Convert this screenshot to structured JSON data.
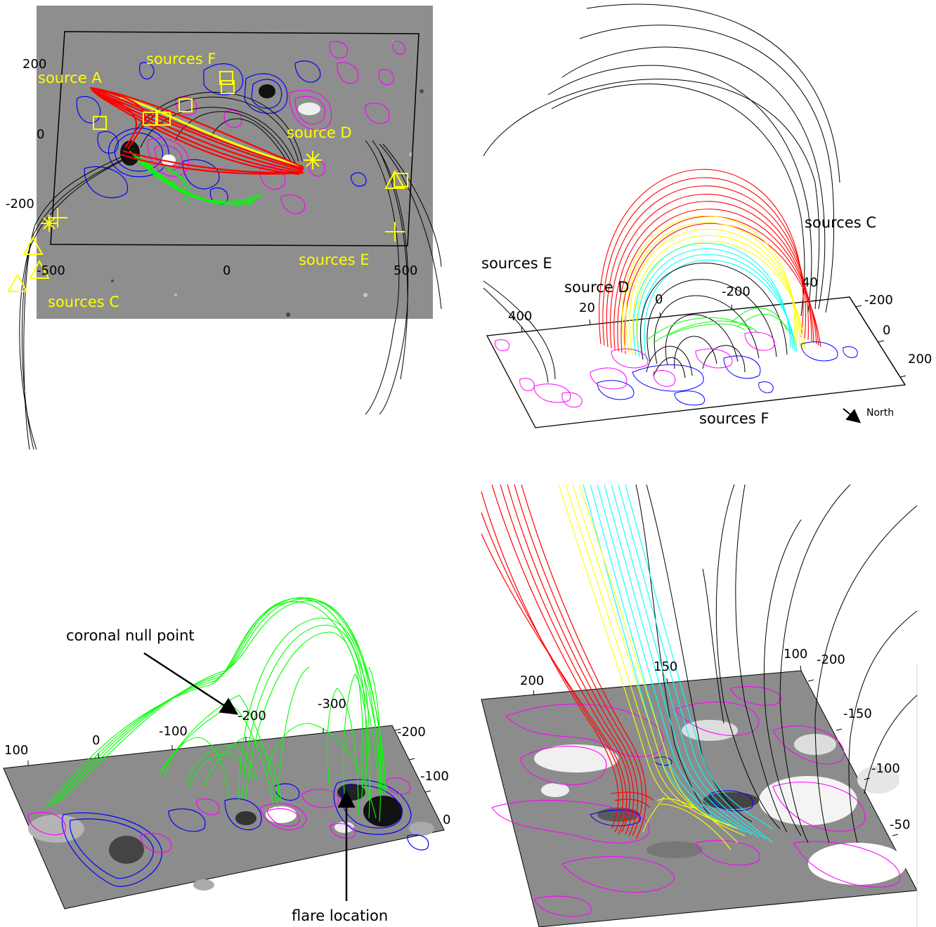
{
  "panel_a": {
    "labels": {
      "source_a": "source A",
      "sources_f": "sources F",
      "source_d": "source D",
      "sources_e": "sources E",
      "sources_c": "sources C"
    },
    "ticks": {
      "y_200": "200",
      "y_0": "0",
      "y_m200": "-200",
      "x_m500": "-500",
      "x_0": "0",
      "x_500": "500"
    }
  },
  "panel_b": {
    "labels": {
      "sources_e": "sources E",
      "source_d": "source D",
      "sources_c": "sources C",
      "sources_f": "sources F",
      "north": "North"
    },
    "ticks": {
      "t400": "400",
      "t20": "20",
      "t0": "0",
      "tm200": "-200",
      "t40": "40",
      "r_m200": "-200",
      "r_0": "0",
      "r_200": "200"
    }
  },
  "panel_c": {
    "labels": {
      "coronal_null": "coronal null point",
      "flare_location": "flare location"
    },
    "ticks": {
      "t100": "100",
      "t0": "0",
      "tm100": "-100",
      "tm200": "-200",
      "tm300": "-300",
      "r_m200": "-200",
      "r_m100": "-100",
      "r_0": "0"
    }
  },
  "panel_d": {
    "ticks": {
      "t200": "200",
      "t150": "150",
      "t100": "100",
      "r_m200": "-200",
      "r_m150": "-150",
      "r_m100": "-100",
      "r_m50": "-50"
    }
  },
  "colors": {
    "red": "#ff0000",
    "yellow": "#ffff00",
    "cyan": "#00ffff",
    "green": "#00ff00",
    "magenta": "#ff00ff",
    "blue": "#0000ff",
    "label_yellow": "#ffff00"
  }
}
